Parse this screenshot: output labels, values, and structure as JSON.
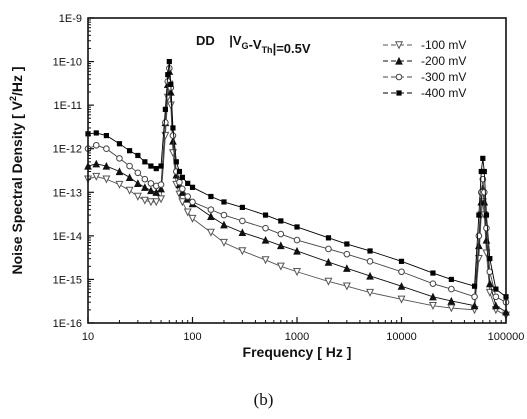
{
  "caption": "(b)",
  "chart_data": {
    "type": "line",
    "title": "",
    "annotation": "DD   |V_G-V_Th|=0.5V",
    "xlabel": "Frequency [ Hz ]",
    "ylabel": "Noise Spectral Density [ V²/Hz ]",
    "xscale": "log",
    "yscale": "log",
    "xlim": [
      10,
      100000
    ],
    "ylim": [
      1e-16,
      1e-09
    ],
    "x_tick_labels": [
      "10",
      "100",
      "1000",
      "10000",
      "100000"
    ],
    "y_tick_labels": [
      "1E-16",
      "1E-15",
      "1E-14",
      "1E-13",
      "1E-12",
      "1E-11",
      "1E-10",
      "1E-9"
    ],
    "legend_position": "top-right",
    "grid": false,
    "series": [
      {
        "name": "-100 mV",
        "marker": "triangle-down-open",
        "color": "#555555",
        "x": [
          10,
          12,
          15,
          20,
          25,
          30,
          35,
          40,
          45,
          50,
          55,
          58,
          60,
          62,
          65,
          70,
          75,
          80,
          90,
          100,
          150,
          200,
          300,
          500,
          700,
          1000,
          2000,
          3000,
          5000,
          10000,
          20000,
          30000,
          50000,
          55000,
          58000,
          60000,
          62000,
          65000,
          70000,
          80000,
          100000
        ],
        "y": [
          2e-13,
          2.3e-13,
          2e-13,
          1.5e-13,
          1.1e-13,
          8e-14,
          6.5e-14,
          6e-14,
          6e-14,
          7e-14,
          2e-12,
          1.5e-11,
          3e-11,
          1e-11,
          8e-13,
          1.5e-13,
          9e-14,
          6e-14,
          3.5e-14,
          2.5e-14,
          1.2e-14,
          7e-15,
          4.5e-15,
          2.8e-15,
          2e-15,
          1.5e-15,
          9e-16,
          7e-16,
          5e-16,
          3.5e-16,
          2.5e-16,
          2.2e-16,
          2e-16,
          3e-15,
          3e-14,
          6e-14,
          3e-14,
          4e-15,
          5e-16,
          2e-16,
          1.5e-16
        ]
      },
      {
        "name": "-200 mV",
        "marker": "triangle-up-filled",
        "color": "#111111",
        "x": [
          10,
          12,
          15,
          20,
          25,
          30,
          35,
          40,
          45,
          50,
          55,
          58,
          60,
          62,
          65,
          70,
          75,
          80,
          90,
          100,
          150,
          200,
          300,
          500,
          700,
          1000,
          2000,
          3000,
          5000,
          10000,
          20000,
          30000,
          50000,
          55000,
          58000,
          60000,
          62000,
          65000,
          70000,
          80000,
          100000
        ],
        "y": [
          4e-13,
          4.5e-13,
          4e-13,
          3e-13,
          2.2e-13,
          1.6e-13,
          1.3e-13,
          1.1e-13,
          1e-13,
          1.2e-13,
          4e-12,
          3e-11,
          6e-11,
          2e-11,
          1.5e-12,
          2.5e-13,
          1.5e-13,
          1e-13,
          7e-14,
          5.5e-14,
          2.8e-14,
          1.8e-14,
          1.2e-14,
          8e-15,
          6e-15,
          4.5e-15,
          2.5e-15,
          1.8e-15,
          1.2e-15,
          7e-16,
          4e-16,
          3.2e-16,
          2.5e-16,
          6e-15,
          6e-14,
          1.2e-13,
          6e-14,
          8e-15,
          8e-16,
          2.5e-16,
          1.8e-16
        ]
      },
      {
        "name": "-300 mV",
        "marker": "circle-open",
        "color": "#444444",
        "x": [
          10,
          12,
          15,
          20,
          25,
          30,
          35,
          40,
          45,
          50,
          55,
          58,
          60,
          62,
          65,
          70,
          75,
          80,
          90,
          100,
          150,
          200,
          300,
          500,
          700,
          1000,
          2000,
          3000,
          5000,
          10000,
          20000,
          30000,
          50000,
          55000,
          58000,
          60000,
          62000,
          65000,
          70000,
          80000,
          100000
        ],
        "y": [
          1e-12,
          1.2e-12,
          1e-12,
          6e-13,
          4e-13,
          2.8e-13,
          2e-13,
          1.6e-13,
          1.4e-13,
          1.5e-13,
          4e-12,
          3.5e-11,
          7e-11,
          2.5e-11,
          2e-12,
          3e-13,
          1.7e-13,
          1.2e-13,
          8e-14,
          6e-14,
          4e-14,
          3e-14,
          2.2e-14,
          1.5e-14,
          1.1e-14,
          8e-15,
          5e-15,
          3.8e-15,
          2.6e-15,
          1.5e-15,
          8e-16,
          6e-16,
          4e-16,
          1e-14,
          1e-13,
          2e-13,
          1e-13,
          1.5e-14,
          1.5e-15,
          4e-16,
          3e-16
        ]
      },
      {
        "name": "-400 mV",
        "marker": "square-filled",
        "color": "#000000",
        "x": [
          10,
          12,
          15,
          20,
          25,
          30,
          35,
          40,
          45,
          50,
          55,
          58,
          60,
          62,
          65,
          70,
          75,
          80,
          90,
          100,
          150,
          200,
          300,
          500,
          700,
          1000,
          2000,
          3000,
          5000,
          10000,
          20000,
          30000,
          50000,
          55000,
          58000,
          60000,
          62000,
          65000,
          70000,
          80000,
          100000
        ],
        "y": [
          2.2e-12,
          2.3e-12,
          2e-12,
          1.3e-12,
          9e-13,
          7e-13,
          5e-13,
          4e-13,
          3.5e-13,
          4e-13,
          8e-12,
          5e-11,
          1e-10,
          3e-11,
          3e-12,
          5e-13,
          3e-13,
          2.2e-13,
          1.6e-13,
          1.3e-13,
          8e-14,
          6e-14,
          4.5e-14,
          3e-14,
          2.2e-14,
          1.6e-14,
          9e-15,
          6.5e-15,
          4.5e-15,
          2.6e-15,
          1.4e-15,
          1e-15,
          7e-16,
          3e-14,
          3e-13,
          6e-13,
          3e-13,
          3e-14,
          3e-15,
          6e-16,
          4e-16
        ]
      }
    ]
  }
}
